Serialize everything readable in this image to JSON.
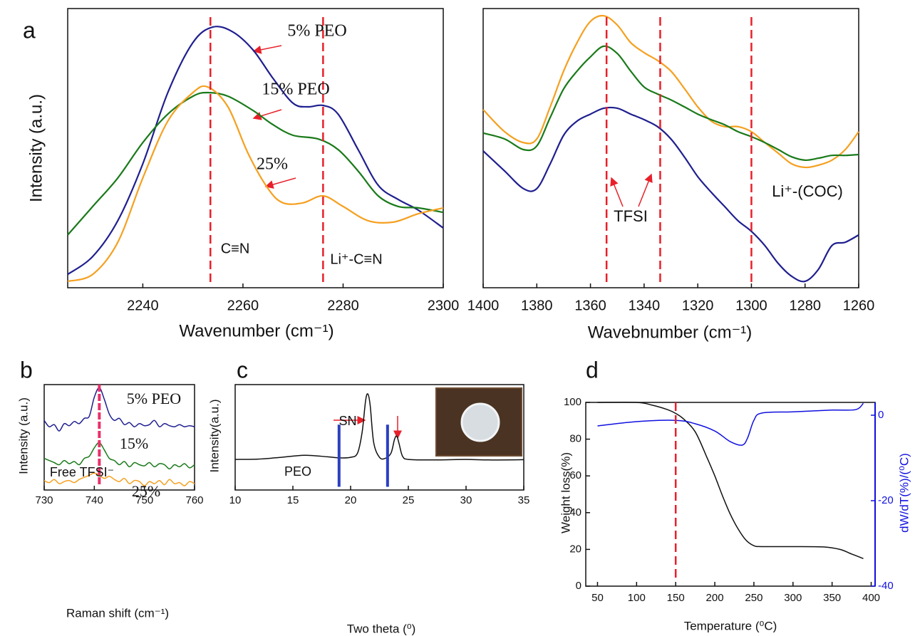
{
  "chart_data": [
    {
      "type": "line",
      "panel": "a",
      "ylabel": "Intensity (a.u.)",
      "xlabel": "Wavenumber (cm⁻¹)",
      "xlim": [
        2225,
        2300
      ],
      "xticks": [
        2240,
        2260,
        2280,
        2300
      ],
      "ylim": [
        0,
        100
      ],
      "reference_lines": [
        2253.5,
        2276
      ],
      "reference_color": "#e8202a",
      "annotations": [
        "5% PEO",
        "15% PEO",
        "25%",
        "C≡N",
        "Li⁺-C≡N"
      ],
      "series": [
        {
          "name": "5% PEO",
          "color": "#1f1f8f",
          "x": [
            2225,
            2230,
            2235,
            2240,
            2245,
            2250,
            2254,
            2258,
            2262,
            2266,
            2270,
            2273,
            2276,
            2279,
            2283,
            2287,
            2291,
            2295,
            2300
          ],
          "values": [
            4.8,
            11.2,
            24.0,
            44.4,
            69.9,
            87.8,
            93.4,
            91.6,
            85.2,
            75.0,
            66.1,
            64.8,
            65.3,
            62.2,
            49.5,
            36.7,
            31.6,
            27.8,
            21.4
          ]
        },
        {
          "name": "15% PEO",
          "color": "#1a7a1a",
          "x": [
            2225,
            2230,
            2235,
            2240,
            2245,
            2250,
            2253,
            2257,
            2262,
            2266,
            2270,
            2275,
            2279,
            2283,
            2287,
            2291,
            2295,
            2300
          ],
          "values": [
            18.9,
            29.1,
            39.3,
            52.0,
            62.2,
            68.6,
            69.9,
            68.6,
            63.5,
            58.4,
            54.6,
            53.3,
            49.5,
            41.8,
            32.9,
            29.1,
            28.6,
            27.0
          ]
        },
        {
          "name": "25%",
          "color": "#f5a020",
          "x": [
            2225,
            2230,
            2235,
            2240,
            2245,
            2250,
            2253,
            2257,
            2261,
            2265,
            2268,
            2272,
            2276,
            2280,
            2285,
            2290,
            2295,
            2300
          ],
          "values": [
            2.3,
            4.8,
            16.3,
            39.3,
            59.7,
            69.9,
            71.9,
            64.8,
            48.2,
            35.5,
            30.4,
            30.4,
            32.9,
            29.1,
            24.0,
            23.5,
            26.5,
            28.6
          ]
        }
      ]
    },
    {
      "type": "line",
      "xlabel": "Wavebnumber (cm⁻¹)",
      "xlim": [
        1400,
        1260
      ],
      "xticks": [
        1400,
        1380,
        1360,
        1340,
        1320,
        1300,
        1280,
        1260
      ],
      "ylim": [
        0,
        100
      ],
      "reference_lines": [
        1354,
        1334,
        1300
      ],
      "reference_color": "#e8202a",
      "annotations": [
        "TFSI",
        "Li⁺-(COC)"
      ],
      "series": [
        {
          "color": "#f5a020",
          "x": [
            1400,
            1392,
            1385,
            1380,
            1375,
            1370,
            1365,
            1360,
            1355,
            1350,
            1345,
            1340,
            1335,
            1330,
            1325,
            1320,
            1315,
            1310,
            1305,
            1300,
            1295,
            1290,
            1285,
            1280,
            1275,
            1270,
            1265,
            1260
          ],
          "values": [
            63.8,
            55.9,
            52.0,
            53.3,
            64.8,
            77.6,
            87.8,
            95.4,
            97.4,
            94.1,
            87.8,
            84.2,
            81.4,
            77.6,
            71.4,
            64.8,
            59.7,
            57.7,
            57.7,
            55.9,
            52.0,
            48.2,
            44.4,
            43.1,
            43.9,
            45.7,
            49.5,
            55.9
          ]
        },
        {
          "color": "#1a7a1a",
          "x": [
            1400,
            1392,
            1385,
            1380,
            1375,
            1370,
            1365,
            1360,
            1355,
            1350,
            1345,
            1340,
            1335,
            1330,
            1325,
            1320,
            1315,
            1310,
            1305,
            1300,
            1295,
            1290,
            1285,
            1280,
            1275,
            1270,
            1265,
            1260
          ],
          "values": [
            55.4,
            53.3,
            49.5,
            50.8,
            61.0,
            71.2,
            77.6,
            82.7,
            86.5,
            83.9,
            77.6,
            71.9,
            69.4,
            67.3,
            64.8,
            62.2,
            60.2,
            58.4,
            55.9,
            54.1,
            52.0,
            49.5,
            46.9,
            45.7,
            46.4,
            47.4,
            47.4,
            47.7
          ]
        },
        {
          "color": "#1f1f8f",
          "x": [
            1400,
            1392,
            1385,
            1380,
            1375,
            1370,
            1365,
            1360,
            1355,
            1350,
            1345,
            1340,
            1335,
            1330,
            1325,
            1320,
            1315,
            1310,
            1305,
            1300,
            1295,
            1290,
            1285,
            1280,
            1275,
            1270,
            1265,
            1260
          ],
          "values": [
            49.0,
            41.8,
            35.5,
            35.5,
            44.4,
            54.6,
            59.7,
            62.2,
            64.3,
            64.3,
            62.2,
            60.2,
            57.7,
            53.3,
            46.9,
            39.8,
            34.2,
            29.1,
            24.0,
            20.2,
            15.1,
            8.7,
            4.1,
            2.3,
            6.6,
            15.1,
            16.3,
            18.9
          ]
        }
      ]
    },
    {
      "type": "line",
      "panel": "b",
      "ylabel": "Intensity (a.u.)",
      "xlabel": "Raman shift (cm⁻¹)",
      "xlim": [
        730,
        760
      ],
      "xticks": [
        730,
        740,
        750,
        760
      ],
      "ylim": [
        0,
        100
      ],
      "reference_lines": [
        741
      ],
      "reference_color": "#e8306a",
      "annotations": [
        "5% PEO",
        "15%",
        "Free TFSI⁻",
        "25%"
      ],
      "series": [
        {
          "color": "#1f1f8f",
          "x": [
            730,
            731,
            732,
            733,
            734,
            735,
            736,
            737,
            738,
            739,
            740,
            741,
            742,
            743,
            744,
            745,
            746,
            747,
            748,
            749,
            750,
            751,
            752,
            753,
            754,
            755,
            756,
            757,
            758,
            759,
            760
          ],
          "values": [
            66,
            60,
            62,
            56,
            63,
            61,
            65,
            63,
            68,
            70,
            88,
            97,
            86,
            72,
            66,
            68,
            62,
            64,
            60,
            63,
            61,
            62,
            66,
            60,
            63,
            61,
            60,
            62,
            60,
            61,
            60
          ]
        },
        {
          "color": "#1a7a1a",
          "x": [
            730,
            731,
            732,
            733,
            734,
            735,
            736,
            737,
            738,
            739,
            740,
            741,
            742,
            743,
            744,
            745,
            746,
            747,
            748,
            749,
            750,
            751,
            752,
            753,
            754,
            755,
            756,
            757,
            758,
            759,
            760
          ],
          "values": [
            30,
            28,
            26,
            24,
            28,
            25,
            27,
            24,
            30,
            32,
            40,
            45,
            38,
            30,
            28,
            24,
            27,
            22,
            26,
            24,
            23,
            26,
            22,
            25,
            24,
            20,
            24,
            22,
            25,
            21,
            24
          ]
        },
        {
          "color": "#f5a020",
          "x": [
            730,
            731,
            732,
            733,
            734,
            735,
            736,
            737,
            738,
            739,
            740,
            741,
            742,
            743,
            744,
            745,
            746,
            747,
            748,
            749,
            750,
            751,
            752,
            753,
            754,
            755,
            756,
            757,
            758,
            759,
            760
          ],
          "values": [
            9,
            7,
            10,
            6,
            8,
            9,
            7,
            10,
            12,
            14,
            16,
            14,
            11,
            13,
            10,
            8,
            11,
            6,
            9,
            8,
            4,
            8,
            6,
            9,
            5,
            10,
            6,
            7,
            4,
            8,
            6
          ]
        }
      ]
    },
    {
      "type": "line",
      "panel": "c",
      "ylabel": "Intensity(a.u.)",
      "xlabel": "Two theta (⁰)",
      "xlim": [
        10,
        35
      ],
      "xticks": [
        10,
        15,
        20,
        25,
        30,
        35
      ],
      "ylim": [
        0,
        100
      ],
      "markers_x": [
        19,
        23.2
      ],
      "marker_range": [
        3,
        62
      ],
      "marker_color": "#2b3fbf",
      "annotations": [
        "SN",
        "PEO"
      ],
      "series": [
        {
          "color": "#111111",
          "x": [
            10,
            12,
            14,
            16,
            18,
            19,
            20,
            20.6,
            21,
            21.3,
            21.5,
            21.7,
            22,
            22.5,
            23,
            23.5,
            23.8,
            24,
            24.2,
            24.5,
            25,
            27,
            30,
            32,
            35
          ],
          "values": [
            29,
            29.3,
            31,
            33,
            31.5,
            30.5,
            31,
            35,
            55,
            85,
            91,
            80,
            45,
            31,
            30,
            35,
            48,
            51,
            44,
            32,
            29,
            28.5,
            29,
            28.5,
            28.8
          ]
        }
      ]
    },
    {
      "type": "line",
      "panel": "d",
      "ylabel": "Weight loss(%)",
      "y2label": "dW/dT(%)/(⁰C)",
      "xlabel": "Temperature (⁰C)",
      "xlim": [
        35,
        405
      ],
      "xticks": [
        50,
        100,
        150,
        200,
        250,
        300,
        350,
        400
      ],
      "ylim": [
        0,
        100
      ],
      "yticks": [
        0,
        20,
        40,
        60,
        80,
        100
      ],
      "y2lim": [
        -40,
        3
      ],
      "y2ticks": [
        -40,
        -20,
        0
      ],
      "y2color": "#1010e0",
      "reference_lines": [
        150
      ],
      "reference_color": "#e8202a",
      "series": [
        {
          "color": "#111111",
          "x": [
            50,
            100,
            120,
            140,
            150,
            160,
            175,
            190,
            200,
            210,
            220,
            230,
            240,
            250,
            260,
            300,
            340,
            360,
            375,
            390
          ],
          "values": [
            100,
            100,
            98.5,
            96,
            94,
            91,
            84,
            70,
            60,
            49,
            39,
            31,
            25,
            22,
            21.5,
            21.5,
            21.3,
            20,
            17.5,
            15
          ]
        },
        {
          "color": "#1010e0",
          "axis": "y2",
          "x": [
            50,
            100,
            150,
            175,
            200,
            220,
            235,
            242,
            250,
            260,
            300,
            350,
            380,
            390
          ],
          "values": [
            -2.5,
            -1.5,
            -1.2,
            -2,
            -3.7,
            -6.2,
            -7,
            -5.3,
            -1.2,
            0.5,
            0.8,
            1.2,
            1.3,
            2.8
          ]
        }
      ]
    }
  ]
}
